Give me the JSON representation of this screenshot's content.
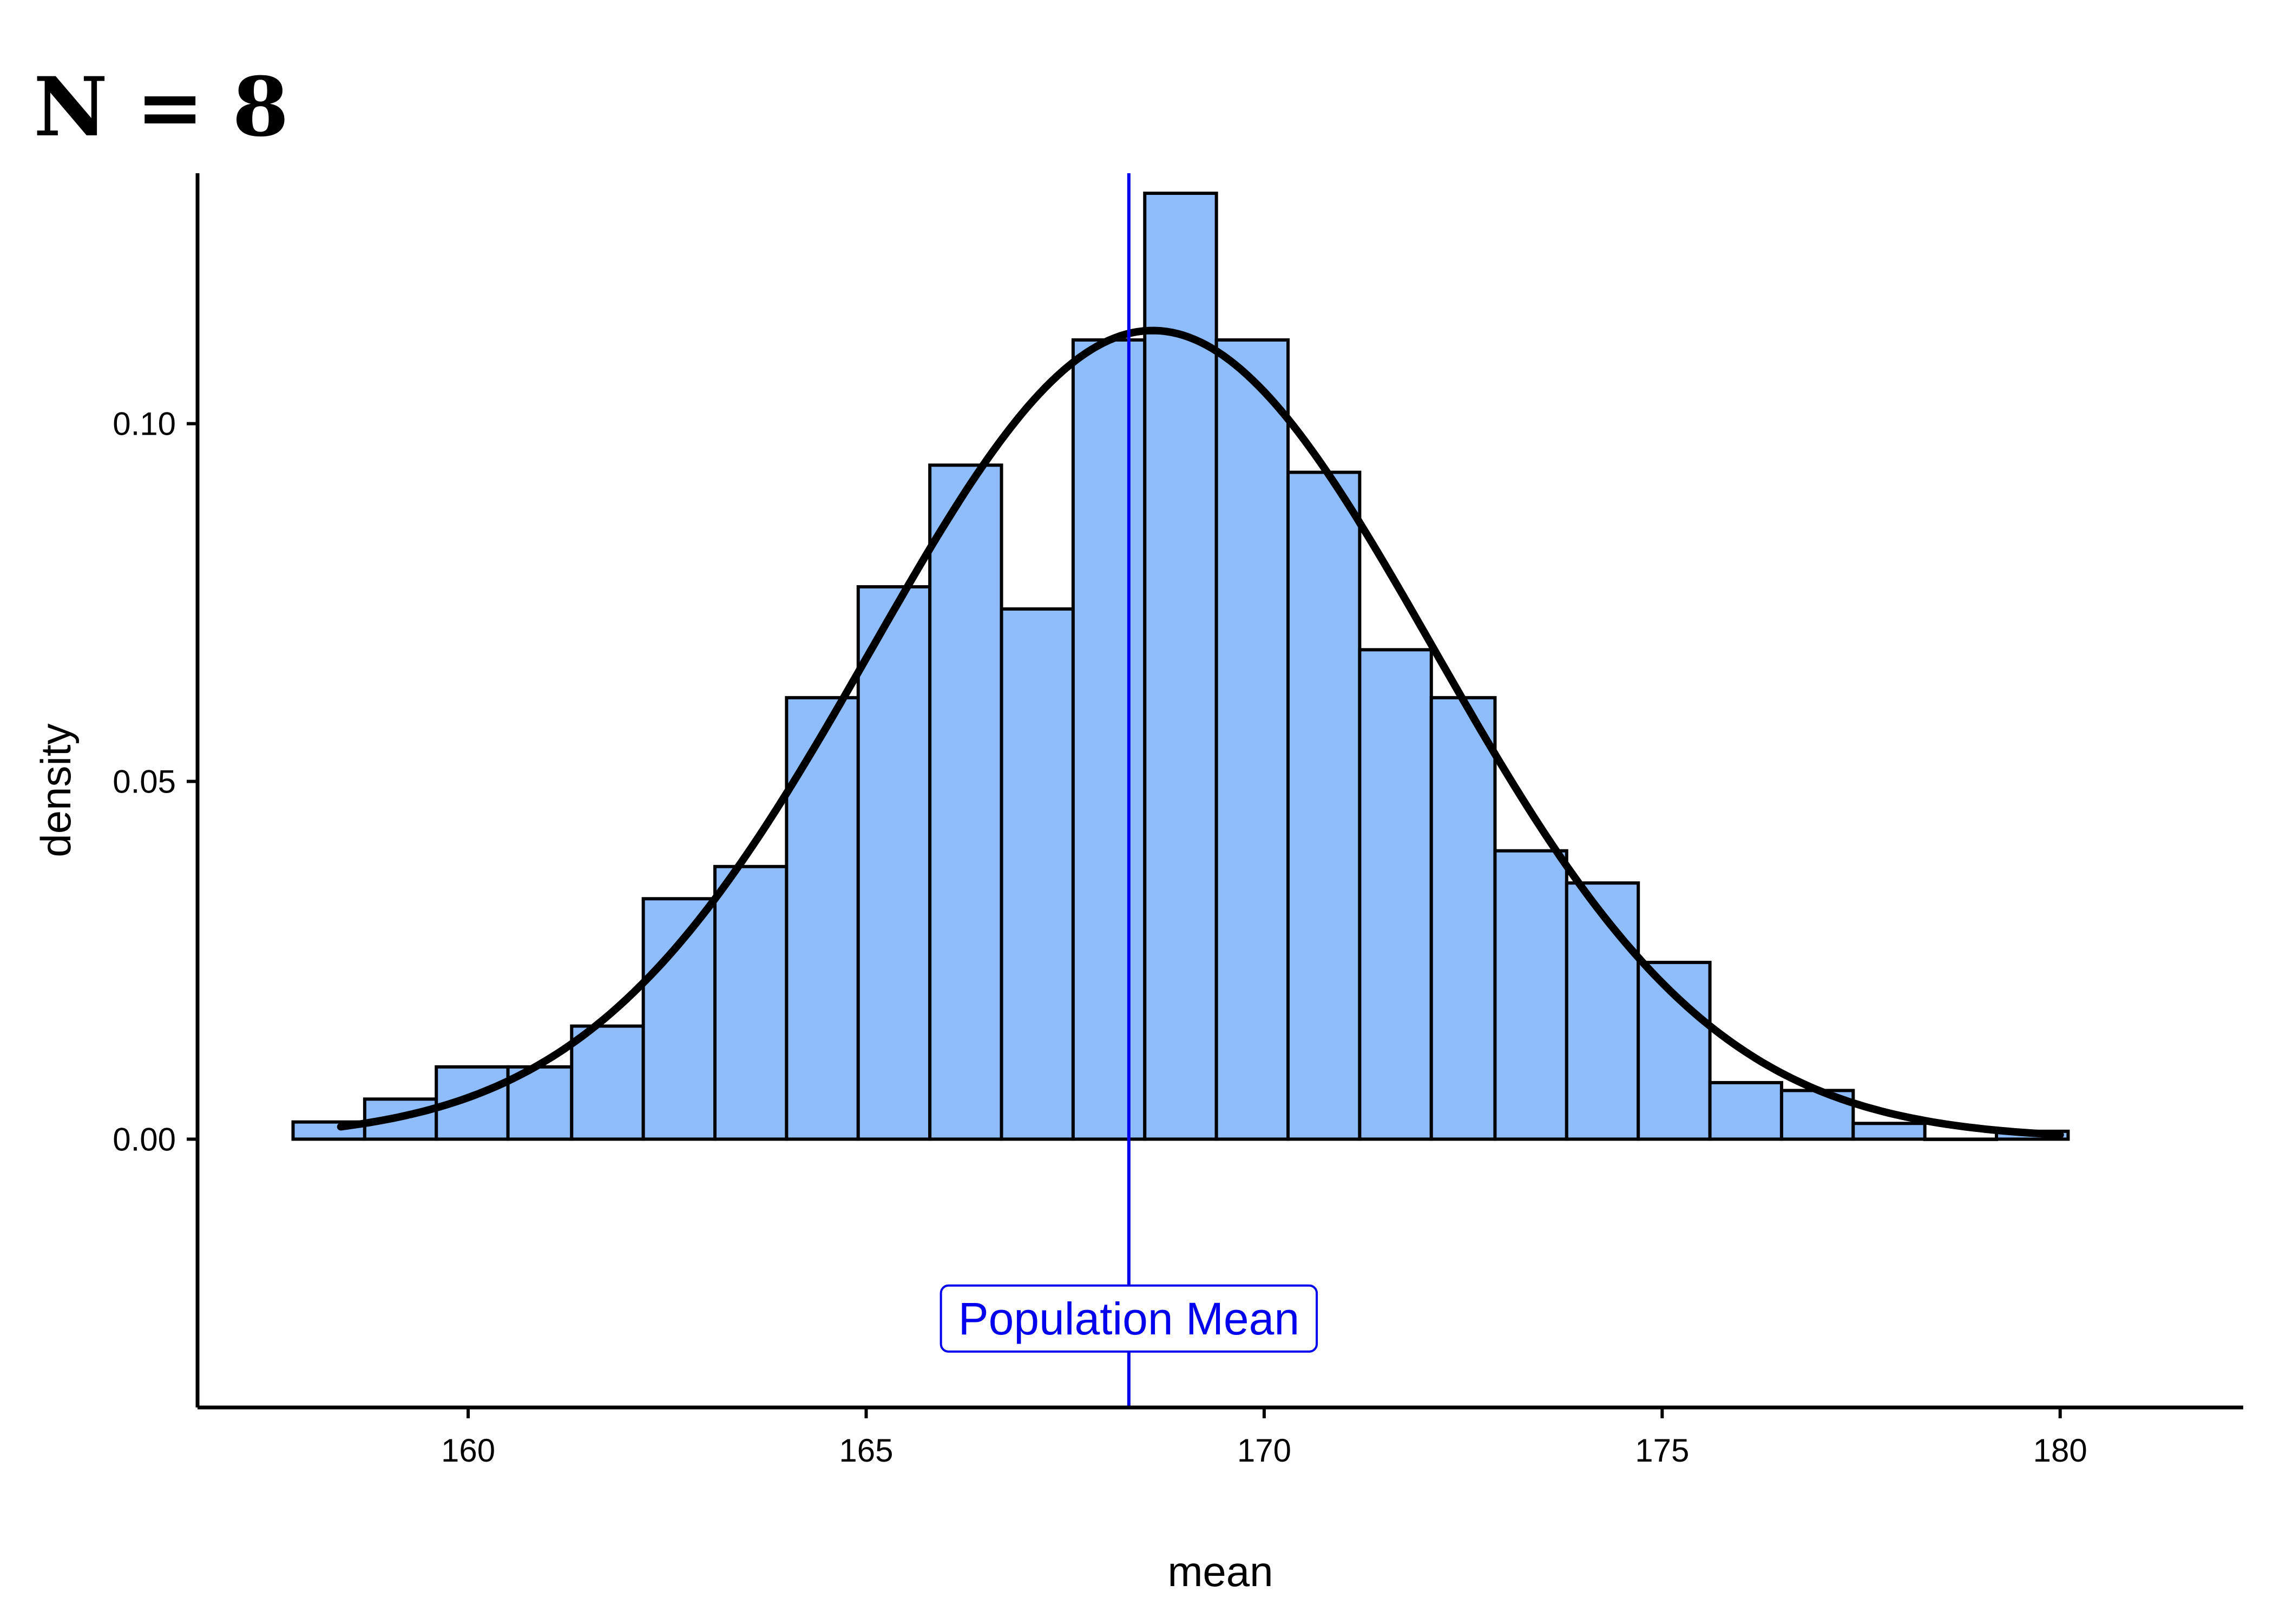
{
  "chart_data": {
    "type": "bar",
    "title": "N = 8",
    "xlabel": "mean",
    "ylabel": "density",
    "xlim": [
      156.6,
      182.3
    ],
    "ylim": [
      -0.0375,
      0.135
    ],
    "x_ticks": [
      160,
      165,
      170,
      175,
      180
    ],
    "y_ticks": [
      0.0,
      0.05,
      0.1
    ],
    "x_tick_labels": [
      "160",
      "165",
      "170",
      "175",
      "180"
    ],
    "y_tick_labels": [
      "0.00",
      "0.05",
      "0.10"
    ],
    "bins": [
      {
        "x0": 157.8,
        "x1": 158.7,
        "density": 0.0024
      },
      {
        "x0": 158.7,
        "x1": 159.6,
        "density": 0.0056
      },
      {
        "x0": 159.6,
        "x1": 160.5,
        "density": 0.0101
      },
      {
        "x0": 160.5,
        "x1": 161.3,
        "density": 0.0101
      },
      {
        "x0": 161.3,
        "x1": 162.2,
        "density": 0.0158
      },
      {
        "x0": 162.2,
        "x1": 163.1,
        "density": 0.0336
      },
      {
        "x0": 163.1,
        "x1": 164.0,
        "density": 0.0381
      },
      {
        "x0": 164.0,
        "x1": 164.9,
        "density": 0.0617
      },
      {
        "x0": 164.9,
        "x1": 165.8,
        "density": 0.0772
      },
      {
        "x0": 165.8,
        "x1": 166.7,
        "density": 0.0942
      },
      {
        "x0": 166.7,
        "x1": 167.6,
        "density": 0.0741
      },
      {
        "x0": 167.6,
        "x1": 168.5,
        "density": 0.1117
      },
      {
        "x0": 168.5,
        "x1": 169.4,
        "density": 0.1322
      },
      {
        "x0": 169.4,
        "x1": 170.3,
        "density": 0.1117
      },
      {
        "x0": 170.3,
        "x1": 171.2,
        "density": 0.0932
      },
      {
        "x0": 171.2,
        "x1": 172.1,
        "density": 0.0684
      },
      {
        "x0": 172.1,
        "x1": 172.9,
        "density": 0.0617
      },
      {
        "x0": 172.9,
        "x1": 173.8,
        "density": 0.0403
      },
      {
        "x0": 173.8,
        "x1": 174.7,
        "density": 0.0358
      },
      {
        "x0": 174.7,
        "x1": 175.6,
        "density": 0.0247
      },
      {
        "x0": 175.6,
        "x1": 176.5,
        "density": 0.0079
      },
      {
        "x0": 176.5,
        "x1": 177.4,
        "density": 0.0068
      },
      {
        "x0": 177.4,
        "x1": 178.3,
        "density": 0.0022
      },
      {
        "x0": 178.3,
        "x1": 179.2,
        "density": 0.0
      },
      {
        "x0": 179.2,
        "x1": 180.1,
        "density": 0.0011
      }
    ],
    "normal_curve": {
      "mean": 168.6,
      "sd": 3.53,
      "x_range": [
        158.4,
        180.0
      ]
    },
    "population_mean": 168.3,
    "annotation": {
      "text": "Population Mean",
      "x": 168.3,
      "y": -0.025
    },
    "grid": false
  },
  "colors": {
    "bar_fill": "#8fbcfb",
    "bar_stroke": "#000000",
    "curve": "#000000",
    "mean_line": "#0000ee",
    "axis": "#000000"
  }
}
